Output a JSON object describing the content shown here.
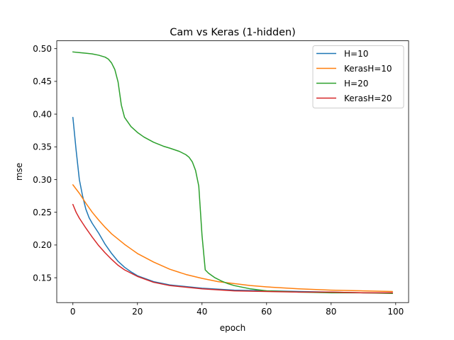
{
  "chart_data": {
    "type": "line",
    "title": "Cam vs Keras (1-hidden)",
    "xlabel": "epoch",
    "ylabel": "mse",
    "xlim": [
      -5,
      104
    ],
    "ylim": [
      0.112,
      0.512
    ],
    "xticks": [
      0,
      20,
      40,
      60,
      80,
      100
    ],
    "yticks": [
      0.15,
      0.2,
      0.25,
      0.3,
      0.35,
      0.4,
      0.45,
      0.5
    ],
    "xtick_labels": [
      "0",
      "20",
      "40",
      "60",
      "80",
      "100"
    ],
    "ytick_labels": [
      "0.15",
      "0.20",
      "0.25",
      "0.30",
      "0.35",
      "0.40",
      "0.45",
      "0.50"
    ],
    "grid": false,
    "legend_position": "top-right",
    "series": [
      {
        "name": "H=10",
        "color": "#1f77b4",
        "x": [
          0,
          1,
          2,
          3,
          4,
          5,
          6,
          8,
          10,
          12,
          14,
          16,
          18,
          20,
          25,
          30,
          40,
          50,
          60,
          70,
          80,
          90,
          99
        ],
        "y": [
          0.395,
          0.345,
          0.3,
          0.275,
          0.255,
          0.242,
          0.233,
          0.218,
          0.201,
          0.187,
          0.175,
          0.166,
          0.159,
          0.153,
          0.144,
          0.139,
          0.134,
          0.131,
          0.13,
          0.129,
          0.128,
          0.127,
          0.127
        ]
      },
      {
        "name": "KerasH=10",
        "color": "#ff7f0e",
        "x": [
          0,
          2,
          4,
          6,
          8,
          10,
          12,
          14,
          16,
          18,
          20,
          25,
          30,
          35,
          40,
          45,
          50,
          55,
          60,
          70,
          80,
          90,
          99
        ],
        "y": [
          0.292,
          0.279,
          0.264,
          0.25,
          0.238,
          0.227,
          0.217,
          0.209,
          0.201,
          0.194,
          0.187,
          0.174,
          0.163,
          0.155,
          0.149,
          0.144,
          0.141,
          0.138,
          0.136,
          0.133,
          0.131,
          0.13,
          0.129
        ]
      },
      {
        "name": "H=20",
        "color": "#2ca02c",
        "x": [
          0,
          2,
          4,
          6,
          8,
          10,
          11,
          12,
          13,
          14,
          15,
          16,
          17,
          18,
          20,
          22,
          25,
          28,
          30,
          33,
          35,
          36,
          37,
          38,
          39,
          40,
          41,
          42,
          44,
          46,
          48,
          50,
          55,
          60,
          70,
          80,
          90,
          99
        ],
        "y": [
          0.495,
          0.494,
          0.493,
          0.492,
          0.49,
          0.487,
          0.484,
          0.478,
          0.468,
          0.449,
          0.414,
          0.395,
          0.388,
          0.381,
          0.372,
          0.365,
          0.357,
          0.351,
          0.348,
          0.343,
          0.338,
          0.334,
          0.327,
          0.314,
          0.29,
          0.215,
          0.162,
          0.157,
          0.15,
          0.145,
          0.141,
          0.138,
          0.133,
          0.13,
          0.128,
          0.127,
          0.127,
          0.126
        ]
      },
      {
        "name": "KerasH=20",
        "color": "#d62728",
        "x": [
          0,
          1,
          2,
          4,
          6,
          8,
          10,
          12,
          14,
          16,
          18,
          20,
          25,
          30,
          40,
          50,
          60,
          70,
          80,
          90,
          99
        ],
        "y": [
          0.262,
          0.25,
          0.241,
          0.226,
          0.212,
          0.199,
          0.188,
          0.178,
          0.169,
          0.162,
          0.157,
          0.152,
          0.143,
          0.138,
          0.133,
          0.13,
          0.129,
          0.128,
          0.128,
          0.127,
          0.127
        ]
      }
    ]
  }
}
